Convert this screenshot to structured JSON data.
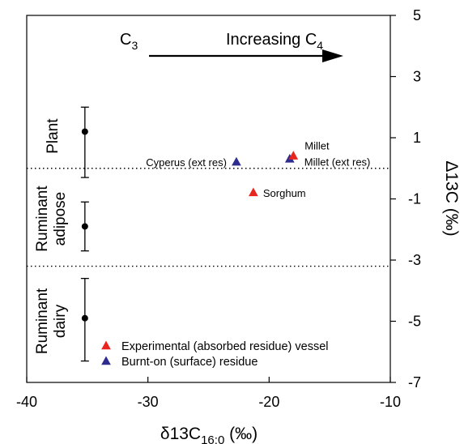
{
  "chart_data": {
    "type": "scatter",
    "x_axis": {
      "label_main": "δ13C",
      "label_sub": "16:0",
      "label_unit": " (‰)",
      "range": [
        -40,
        -10
      ],
      "ticks": [
        -40,
        -30,
        -20,
        -10
      ],
      "tick_labels": [
        "-40",
        "-30",
        "-20",
        "-10"
      ]
    },
    "y_axis": {
      "label_main": "Δ13C",
      "label_unit": " (‰)",
      "range": [
        -7,
        5
      ],
      "ticks": [
        -7,
        -5,
        -3,
        -1,
        1,
        3,
        5
      ],
      "tick_labels": [
        "-7",
        "-5",
        "-3",
        "-1",
        "1",
        "3",
        "5"
      ],
      "position": "right"
    },
    "annotation": {
      "c3": "C",
      "c3_sub": "3",
      "increasing": "Increasing C",
      "increasing_sub": "4"
    },
    "reference_ranges": [
      {
        "name": "Plant",
        "x": -35.2,
        "y": 1.2,
        "y_low": -0.3,
        "y_high": 2.0
      },
      {
        "name": "Ruminant adipose",
        "x": -35.2,
        "y": -1.9,
        "y_low": -2.7,
        "y_high": -1.1
      },
      {
        "name": "Ruminant dairy",
        "x": -35.2,
        "y": -4.9,
        "y_low": -6.3,
        "y_high": -3.6
      }
    ],
    "region_labels": [
      {
        "lines": [
          "Plant"
        ]
      },
      {
        "lines": [
          "Ruminant",
          "adipose"
        ]
      },
      {
        "lines": [
          "Ruminant",
          "dairy"
        ]
      }
    ],
    "dividers_y": [
      0.0,
      -3.2
    ],
    "series": [
      {
        "name": "Experimental (absorbed residue) vessel",
        "color": "#e8261f",
        "points": [
          {
            "x": -18.0,
            "y": 0.4,
            "label": "Millet"
          },
          {
            "x": -21.3,
            "y": -0.8,
            "label": "Sorghum"
          }
        ]
      },
      {
        "name": "Burnt-on (surface) residue",
        "color": "#2e2d8f",
        "points": [
          {
            "x": -22.7,
            "y": 0.2,
            "label": "Cyperus (ext res)"
          },
          {
            "x": -18.3,
            "y": 0.3,
            "label": "Millet (ext res)"
          }
        ]
      }
    ],
    "grid": false,
    "legend_position": "bottom-center"
  }
}
